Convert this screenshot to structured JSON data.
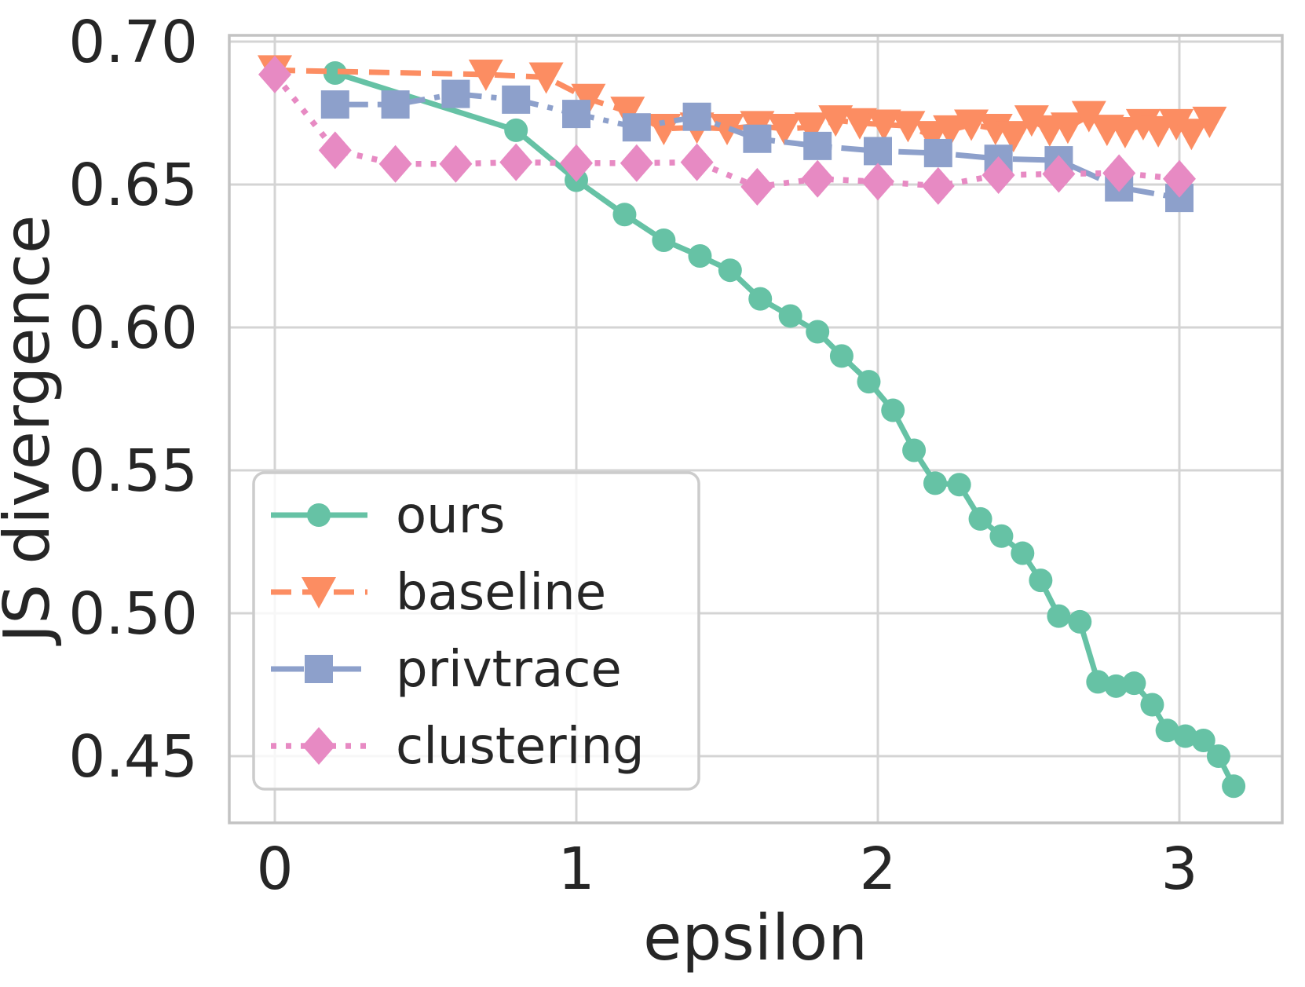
{
  "chart_data": {
    "type": "line",
    "title": "",
    "xlabel": "epsilon",
    "ylabel": "JS divergence",
    "xlim": [
      -0.16,
      3.34
    ],
    "ylim": [
      0.4265,
      0.702
    ],
    "grid": true,
    "legend_position": "lower-left",
    "xticks": {
      "values": [
        0,
        1,
        2,
        3
      ],
      "labels": [
        "0",
        "1",
        "2",
        "3"
      ]
    },
    "yticks": {
      "values": [
        0.7,
        0.65,
        0.6,
        0.55,
        0.5,
        0.45
      ],
      "labels": [
        "0.70",
        "0.65",
        "0.60",
        "0.55",
        "0.50",
        "0.45"
      ]
    },
    "text_color": "#262626",
    "grid_color": "#d4d4d4",
    "series": [
      {
        "name": "ours",
        "color": "#66c2a5",
        "marker": "circle",
        "linestyle": "solid",
        "points": [
          [
            0.2,
            0.689
          ],
          [
            0.8,
            0.669
          ],
          [
            1.0,
            0.6515
          ],
          [
            1.16,
            0.6395
          ],
          [
            1.29,
            0.6305
          ],
          [
            1.41,
            0.625
          ],
          [
            1.51,
            0.62
          ],
          [
            1.61,
            0.61
          ],
          [
            1.71,
            0.604
          ],
          [
            1.8,
            0.5985
          ],
          [
            1.88,
            0.59
          ],
          [
            1.97,
            0.581
          ],
          [
            2.05,
            0.571
          ],
          [
            2.12,
            0.557
          ],
          [
            2.19,
            0.5455
          ],
          [
            2.27,
            0.545
          ],
          [
            2.34,
            0.533
          ],
          [
            2.41,
            0.527
          ],
          [
            2.48,
            0.521
          ],
          [
            2.54,
            0.5115
          ],
          [
            2.6,
            0.499
          ],
          [
            2.67,
            0.497
          ],
          [
            2.73,
            0.476
          ],
          [
            2.79,
            0.4745
          ],
          [
            2.85,
            0.4755
          ],
          [
            2.91,
            0.468
          ],
          [
            2.96,
            0.459
          ],
          [
            3.02,
            0.457
          ],
          [
            3.08,
            0.4555
          ],
          [
            3.13,
            0.45
          ],
          [
            3.18,
            0.4395
          ]
        ]
      },
      {
        "name": "baseline",
        "color": "#fc8d62",
        "marker": "triangle-down",
        "linestyle": "dashed",
        "points": [
          [
            0.0,
            0.69
          ],
          [
            0.7,
            0.6885
          ],
          [
            0.9,
            0.6875
          ],
          [
            1.04,
            0.68
          ],
          [
            1.17,
            0.6755
          ],
          [
            1.29,
            0.6695
          ],
          [
            1.4,
            0.67
          ],
          [
            1.5,
            0.6695
          ],
          [
            1.6,
            0.6705
          ],
          [
            1.69,
            0.6695
          ],
          [
            1.78,
            0.67
          ],
          [
            1.86,
            0.6725
          ],
          [
            1.94,
            0.6715
          ],
          [
            2.02,
            0.671
          ],
          [
            2.1,
            0.6705
          ],
          [
            2.18,
            0.667
          ],
          [
            2.24,
            0.669
          ],
          [
            2.31,
            0.671
          ],
          [
            2.39,
            0.6695
          ],
          [
            2.45,
            0.667
          ],
          [
            2.51,
            0.6725
          ],
          [
            2.57,
            0.669
          ],
          [
            2.63,
            0.67
          ],
          [
            2.7,
            0.674
          ],
          [
            2.76,
            0.6692
          ],
          [
            2.82,
            0.6684
          ],
          [
            2.88,
            0.6712
          ],
          [
            2.93,
            0.6687
          ],
          [
            2.99,
            0.6712
          ],
          [
            3.04,
            0.6678
          ],
          [
            3.1,
            0.672
          ]
        ]
      },
      {
        "name": "privtrace",
        "color": "#8da0cb",
        "marker": "square",
        "linestyle": "dashdot",
        "points": [
          [
            0.2,
            0.678
          ],
          [
            0.4,
            0.678
          ],
          [
            0.6,
            0.6817
          ],
          [
            0.8,
            0.6797
          ],
          [
            1.0,
            0.6747
          ],
          [
            1.2,
            0.67
          ],
          [
            1.4,
            0.6737
          ],
          [
            1.6,
            0.666
          ],
          [
            1.8,
            0.6635
          ],
          [
            2.0,
            0.6617
          ],
          [
            2.2,
            0.661
          ],
          [
            2.4,
            0.659
          ],
          [
            2.6,
            0.6585
          ],
          [
            2.8,
            0.649
          ],
          [
            3.0,
            0.6453
          ]
        ]
      },
      {
        "name": "clustering",
        "color": "#e78ac3",
        "marker": "diamond",
        "linestyle": "dotted",
        "points": [
          [
            0.0,
            0.6885
          ],
          [
            0.2,
            0.662
          ],
          [
            0.4,
            0.6572
          ],
          [
            0.6,
            0.6572
          ],
          [
            0.8,
            0.6578
          ],
          [
            1.0,
            0.6575
          ],
          [
            1.2,
            0.6575
          ],
          [
            1.4,
            0.6578
          ],
          [
            1.6,
            0.6492
          ],
          [
            1.8,
            0.652
          ],
          [
            2.0,
            0.651
          ],
          [
            2.2,
            0.6495
          ],
          [
            2.4,
            0.6533
          ],
          [
            2.6,
            0.6537
          ],
          [
            2.8,
            0.654
          ],
          [
            3.0,
            0.652
          ]
        ]
      }
    ]
  }
}
